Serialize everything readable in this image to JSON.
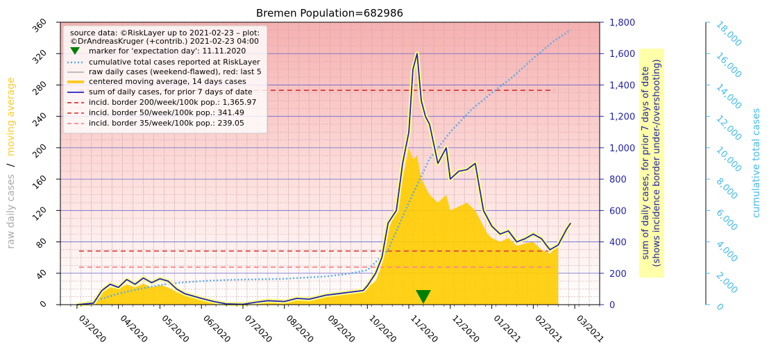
{
  "chart_data": {
    "type": "line",
    "title": "Bremen Population=682986",
    "x_tick_labels": [
      "03/2020",
      "04/2020",
      "05/2020",
      "06/2020",
      "07/2020",
      "08/2020",
      "09/2020",
      "10/2020",
      "11/2020",
      "12/2020",
      "01/2021",
      "02/2021",
      "03/2021"
    ],
    "x_range_months": [
      -0.4,
      12.6
    ],
    "y_left": {
      "label_part1": "raw daily cases",
      "separator": "/",
      "label_part2": "moving average",
      "ticks": [
        "0",
        "40",
        "80",
        "120",
        "160",
        "200",
        "240",
        "280",
        "320",
        "360"
      ],
      "range": [
        0,
        360
      ]
    },
    "y_right1": {
      "label_line1": "sum of daily cases, for prior 7 days of date",
      "label_line2": "(shows incidence border under-/overshooting)",
      "ticks": [
        "0",
        "200",
        "400",
        "600",
        "800",
        "1,000",
        "1,200",
        "1,400",
        "1,600",
        "1,800"
      ],
      "range": [
        0,
        1800
      ]
    },
    "y_right2": {
      "label": "cumulative total cases",
      "ticks": [
        "0",
        "2,000",
        "4,000",
        "6,000",
        "8,000",
        "10,000",
        "12,000",
        "14,000",
        "16,000",
        "18,000"
      ],
      "range": [
        0,
        18000
      ]
    },
    "legend": {
      "placement": "upper-left",
      "source_line1": "source data: ©RiskLayer up to 2021-02-23 – plot:",
      "source_line2": "©DrAndreasKruger (+contrib.) 2021-02-23 04:00",
      "entries": [
        "marker for 'expectation day': 11.11.2020",
        "cumulative total cases reported at RiskLayer",
        "raw daily cases (weekend-flawed), red: last 5",
        "centered moving average, 14 days cases",
        "sum of daily cases, for prior 7 days of date",
        "incid. border 200/week/100k pop.: 1,365.97",
        "incid. border  50/week/100k pop.: 341.49",
        "incid. border  35/week/100k pop.: 239.05"
      ]
    },
    "incidence_borders": [
      {
        "value": 1365.97,
        "color": "#dd3333"
      },
      {
        "value": 341.49,
        "color": "#dd4444"
      },
      {
        "value": 239.05,
        "color": "#ff8888"
      }
    ],
    "expectation_day_month": 8.35,
    "weekly_sum_series": {
      "x_months": [
        0.0,
        0.2,
        0.4,
        0.6,
        0.8,
        1.0,
        1.2,
        1.4,
        1.6,
        1.8,
        2.0,
        2.2,
        2.4,
        2.6,
        2.8,
        3.0,
        3.3,
        3.6,
        4.0,
        4.3,
        4.6,
        5.0,
        5.3,
        5.6,
        6.0,
        6.3,
        6.6,
        6.9,
        7.0,
        7.2,
        7.35,
        7.5,
        7.7,
        7.85,
        8.0,
        8.1,
        8.2,
        8.3,
        8.4,
        8.5,
        8.7,
        8.9,
        9.0,
        9.2,
        9.4,
        9.6,
        9.8,
        9.9,
        10.0,
        10.2,
        10.4,
        10.6,
        10.8,
        11.0,
        11.2,
        11.4,
        11.6,
        11.8,
        11.9
      ],
      "values": [
        0,
        5,
        10,
        90,
        130,
        110,
        160,
        130,
        170,
        140,
        165,
        150,
        100,
        70,
        55,
        40,
        20,
        5,
        2,
        15,
        25,
        20,
        40,
        35,
        60,
        70,
        80,
        90,
        120,
        200,
        300,
        520,
        600,
        900,
        1100,
        1500,
        1600,
        1300,
        1200,
        1150,
        900,
        1000,
        800,
        850,
        860,
        900,
        600,
        550,
        500,
        450,
        470,
        400,
        420,
        450,
        420,
        350,
        380,
        480,
        520
      ]
    },
    "moving_average_series": {
      "x_months": [
        0.0,
        0.2,
        0.4,
        0.6,
        0.8,
        1.0,
        1.2,
        1.4,
        1.6,
        1.8,
        2.0,
        2.2,
        2.4,
        2.6,
        2.8,
        3.0,
        3.3,
        3.6,
        4.0,
        4.3,
        4.6,
        5.0,
        5.3,
        5.6,
        6.0,
        6.3,
        6.6,
        6.9,
        7.0,
        7.2,
        7.35,
        7.5,
        7.7,
        7.85,
        8.0,
        8.1,
        8.2,
        8.3,
        8.4,
        8.5,
        8.7,
        8.9,
        9.0,
        9.2,
        9.4,
        9.6,
        9.8,
        9.9,
        10.0,
        10.2,
        10.4,
        10.6,
        10.8,
        11.0,
        11.2,
        11.4,
        11.6
      ],
      "values": [
        0,
        2,
        3,
        15,
        22,
        20,
        26,
        22,
        27,
        22,
        25,
        22,
        16,
        12,
        10,
        8,
        4,
        1,
        1,
        3,
        5,
        4,
        7,
        6,
        11,
        13,
        15,
        17,
        22,
        30,
        50,
        95,
        120,
        160,
        200,
        185,
        190,
        160,
        150,
        140,
        130,
        140,
        120,
        125,
        130,
        120,
        100,
        90,
        85,
        80,
        85,
        75,
        78,
        80,
        70,
        65,
        75
      ]
    },
    "cumulative_series": {
      "x_months": [
        0.0,
        0.5,
        1.0,
        1.5,
        2.0,
        2.5,
        3.0,
        3.5,
        4.0,
        4.5,
        5.0,
        5.5,
        6.0,
        6.5,
        7.0,
        7.5,
        8.0,
        8.5,
        9.0,
        9.5,
        10.0,
        10.5,
        11.0,
        11.5,
        11.9
      ],
      "values": [
        0,
        300,
        700,
        1000,
        1250,
        1400,
        1500,
        1560,
        1600,
        1620,
        1650,
        1720,
        1800,
        1950,
        2200,
        3500,
        6500,
        9300,
        11000,
        12400,
        13500,
        14500,
        15700,
        16800,
        17500
      ]
    }
  }
}
